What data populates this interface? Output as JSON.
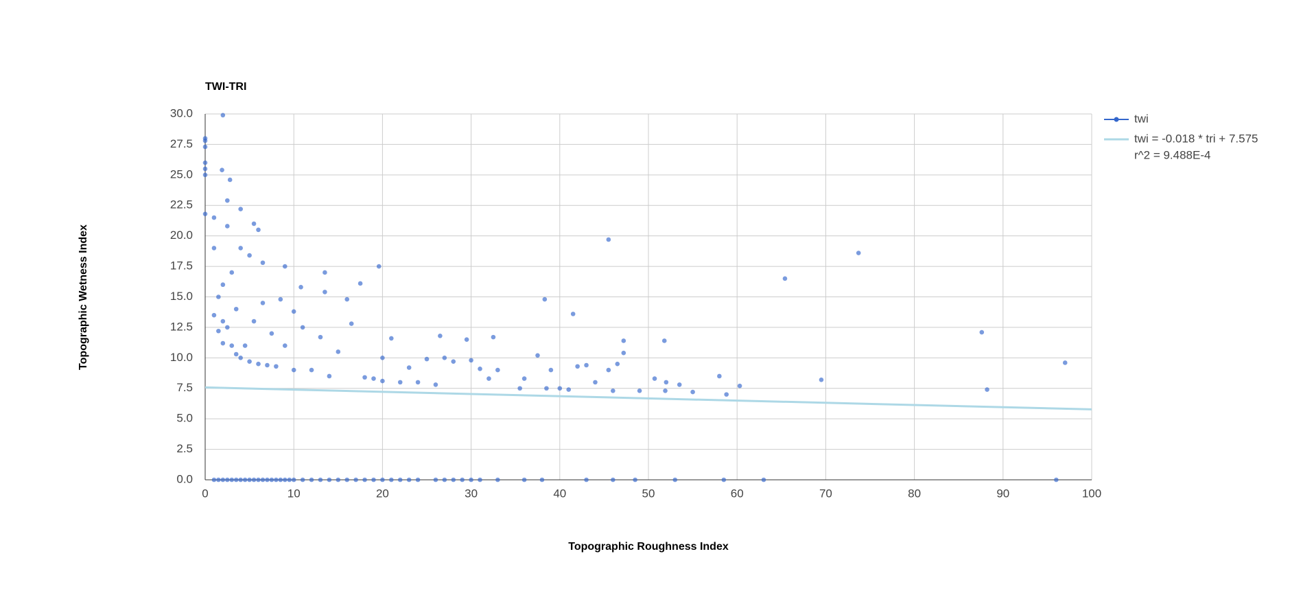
{
  "chart_data": {
    "type": "scatter",
    "title": "TWI-TRI",
    "x_label": "Topographic Roughness Index",
    "y_label": "Topographic Wetness Index",
    "xlim": [
      0,
      100
    ],
    "xticks": [
      0,
      10,
      20,
      30,
      40,
      50,
      60,
      70,
      80,
      90,
      100
    ],
    "ylim": [
      0,
      30
    ],
    "yticks": [
      {
        "value": 0,
        "label": "0.0"
      },
      2.5,
      {
        "value": 5,
        "label": "5.0"
      },
      7.5,
      {
        "value": 10,
        "label": "10.0"
      },
      12.5,
      {
        "value": 15,
        "label": "15.0"
      },
      17.5,
      {
        "value": 20,
        "label": "20.0"
      },
      22.5,
      {
        "value": 25,
        "label": "25.0"
      },
      27.5,
      {
        "value": 30,
        "label": "30.0"
      }
    ],
    "grid": true,
    "legend": "right",
    "series": [
      {
        "name": "twi",
        "color": "#3366cc",
        "kind": "points",
        "x": [
          1,
          1.5,
          2,
          2.5,
          3,
          3.5,
          4,
          4.5,
          5,
          5.5,
          6,
          6.5,
          7,
          7.5,
          8,
          8.5,
          9,
          9.5,
          10,
          11,
          12,
          13,
          14,
          15,
          16,
          17,
          18,
          19,
          20,
          21,
          22,
          23,
          24,
          26,
          27,
          28,
          29,
          30,
          31,
          33,
          36,
          38,
          43,
          46,
          48.5,
          53,
          58.5,
          63,
          96,
          0,
          0,
          0,
          0,
          0,
          0,
          0,
          2,
          1.9,
          2.8,
          2.5,
          4,
          5.5,
          1,
          45.5,
          73.7,
          65.4,
          19.6,
          38.3,
          41.5,
          87.6,
          97,
          88.2,
          69.5,
          60.3,
          58.8,
          58,
          55,
          53.5,
          52,
          51.8,
          51.9,
          50.7,
          49,
          47.2,
          47.2,
          46.5,
          46,
          45.5,
          44,
          43,
          42,
          41,
          40,
          39,
          38.5,
          37.5,
          36,
          35.5,
          33,
          32.5,
          32,
          31,
          30,
          29.5,
          28,
          27,
          26.5,
          26,
          25,
          24,
          23,
          22,
          21,
          20,
          20,
          19,
          18,
          17.5,
          16.5,
          16,
          15,
          14,
          13.5,
          13.5,
          13,
          12,
          11,
          10.8,
          10,
          10,
          9,
          9,
          8.5,
          8,
          7.5,
          7,
          6.5,
          6.5,
          6,
          6,
          5.5,
          5,
          5,
          4.5,
          4,
          4,
          3.5,
          3.5,
          3,
          3,
          2.5,
          2.5,
          2,
          2,
          2,
          1.5,
          1.5,
          1,
          1
        ],
        "values": [
          0,
          0,
          0,
          0,
          0,
          0,
          0,
          0,
          0,
          0,
          0,
          0,
          0,
          0,
          0,
          0,
          0,
          0,
          0,
          0,
          0,
          0,
          0,
          0,
          0,
          0,
          0,
          0,
          0,
          0,
          0,
          0,
          0,
          0,
          0,
          0,
          0,
          0,
          0,
          0,
          0,
          0,
          0,
          0,
          0,
          0,
          0,
          0,
          0,
          28,
          27.8,
          27.3,
          26,
          25.5,
          25,
          21.8,
          29.9,
          25.4,
          24.6,
          22.9,
          22.2,
          21,
          21.5,
          19.7,
          18.6,
          16.5,
          17.5,
          14.8,
          13.6,
          12.1,
          9.6,
          7.4,
          8.2,
          7.7,
          7.0,
          8.5,
          7.2,
          7.8,
          8,
          11.4,
          7.3,
          8.3,
          7.3,
          11.4,
          10.4,
          9.5,
          7.3,
          9,
          8,
          9.4,
          9.3,
          7.4,
          7.5,
          9,
          7.5,
          10.2,
          8.3,
          7.5,
          9,
          11.7,
          8.3,
          9.1,
          9.8,
          11.5,
          9.7,
          10,
          11.8,
          7.8,
          9.9,
          8,
          9.2,
          8,
          11.6,
          8.1,
          10,
          8.3,
          8.4,
          16.1,
          12.8,
          14.8,
          10.5,
          8.5,
          17,
          15.4,
          11.7,
          9,
          12.5,
          15.8,
          9,
          13.8,
          17.5,
          11,
          14.8,
          9.3,
          12,
          9.4,
          17.8,
          14.5,
          9.5,
          20.5,
          13,
          9.7,
          18.4,
          11,
          10,
          19,
          14,
          10.3,
          17,
          11,
          20.8,
          12.5,
          16,
          13,
          11.2,
          15,
          12.2,
          19,
          13.5
        ]
      },
      {
        "name": "twi = -0.018 * tri + 7.575",
        "name2": "r^2 = 9.488E-4",
        "color": "#add8e6",
        "kind": "line",
        "x": [
          0,
          100
        ],
        "values": [
          7.575,
          5.775
        ]
      }
    ]
  }
}
